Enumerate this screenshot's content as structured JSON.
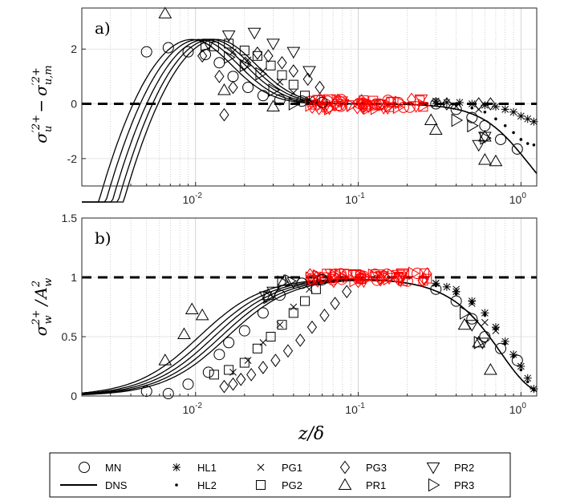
{
  "chart_data": [
    {
      "type": "line",
      "panel_label": "a)",
      "ylabel": "σu'2+ − σu,m'2+",
      "ylabel_parts": {
        "main": "σ",
        "sup1": "′2+",
        "sub1": "u",
        "minus": "−",
        "sup2": "′2+",
        "sub2": "u,m"
      },
      "xscale": "log",
      "xlim": [
        0.002,
        1.25
      ],
      "ylim": [
        -3,
        3.5
      ],
      "yticks": [
        -2,
        0,
        2
      ],
      "ytick_labels": [
        "-2",
        "0",
        "2"
      ],
      "xtick_labels": [
        "10-2",
        "10-1",
        "100"
      ],
      "reference_line": 0,
      "dns_peak_positions": [
        0.0095,
        0.0105,
        0.0115,
        0.0125,
        0.0135
      ],
      "dns_peak_value": 2.35,
      "series": [
        {
          "name": "MN",
          "marker": "circle",
          "points": [
            [
              0.005,
              1.9
            ],
            [
              0.0068,
              2.05
            ],
            [
              0.009,
              1.9
            ],
            [
              0.0115,
              1.8
            ],
            [
              0.014,
              1.5
            ],
            [
              0.017,
              1.0
            ],
            [
              0.021,
              0.6
            ],
            [
              0.026,
              0.3
            ],
            [
              0.033,
              0.15
            ],
            [
              0.045,
              0.1
            ],
            [
              0.06,
              0.05
            ],
            [
              0.3,
              0.0
            ],
            [
              0.4,
              -0.2
            ],
            [
              0.5,
              -0.5
            ],
            [
              0.6,
              -0.8
            ],
            [
              0.75,
              -1.3
            ],
            [
              0.95,
              -1.65
            ]
          ]
        },
        {
          "name": "HL1",
          "marker": "asterisk",
          "points": [
            [
              0.3,
              0.1
            ],
            [
              0.35,
              0.05
            ],
            [
              0.42,
              0.05
            ],
            [
              0.5,
              0.0
            ],
            [
              0.6,
              -0.05
            ],
            [
              0.7,
              -0.1
            ],
            [
              0.8,
              -0.2
            ],
            [
              0.9,
              -0.3
            ],
            [
              1.0,
              -0.45
            ],
            [
              1.1,
              -0.55
            ],
            [
              1.2,
              -0.65
            ]
          ]
        },
        {
          "name": "HL2",
          "marker": "dot",
          "points": [
            [
              0.3,
              0.0
            ],
            [
              0.4,
              -0.05
            ],
            [
              0.5,
              -0.15
            ],
            [
              0.6,
              -0.3
            ],
            [
              0.7,
              -0.55
            ],
            [
              0.8,
              -0.8
            ],
            [
              0.9,
              -1.05
            ],
            [
              1.0,
              -1.3
            ],
            [
              1.1,
              -1.45
            ],
            [
              1.2,
              -1.5
            ]
          ]
        },
        {
          "name": "PG1",
          "marker": "cross",
          "points": [
            [
              0.017,
              1.9
            ],
            [
              0.021,
              1.6
            ],
            [
              0.026,
              1.2
            ],
            [
              0.033,
              0.8
            ],
            [
              0.04,
              0.4
            ],
            [
              0.05,
              0.15
            ],
            [
              0.3,
              0.0
            ],
            [
              0.4,
              -0.1
            ],
            [
              0.55,
              -0.2
            ]
          ]
        },
        {
          "name": "PG2",
          "marker": "square",
          "points": [
            [
              0.013,
              2.1
            ],
            [
              0.016,
              2.2
            ],
            [
              0.02,
              1.95
            ],
            [
              0.024,
              1.75
            ],
            [
              0.029,
              1.4
            ],
            [
              0.034,
              1.05
            ],
            [
              0.04,
              0.7
            ],
            [
              0.047,
              0.3
            ]
          ]
        },
        {
          "name": "PG3",
          "marker": "diamond",
          "points": [
            [
              0.011,
              1.75
            ],
            [
              0.014,
              1.0
            ],
            [
              0.015,
              -0.4
            ],
            [
              0.017,
              0.6
            ],
            [
              0.02,
              1.45
            ],
            [
              0.024,
              1.85
            ],
            [
              0.028,
              1.75
            ],
            [
              0.034,
              1.5
            ],
            [
              0.04,
              1.2
            ],
            [
              0.049,
              0.9
            ],
            [
              0.058,
              0.6
            ],
            [
              0.35,
              0.0
            ],
            [
              0.55,
              0.0
            ],
            [
              0.65,
              0.0
            ]
          ]
        },
        {
          "name": "PR1",
          "marker": "triangle-up",
          "points": [
            [
              0.0065,
              3.3
            ],
            [
              0.015,
              0.5
            ],
            [
              0.03,
              -0.1
            ],
            [
              0.28,
              -0.6
            ],
            [
              0.3,
              -0.95
            ],
            [
              0.6,
              -2.05
            ],
            [
              0.7,
              -2.1
            ],
            [
              0.6,
              -1.2
            ]
          ]
        },
        {
          "name": "PR2",
          "marker": "triangle-down",
          "points": [
            [
              0.012,
              2.2
            ],
            [
              0.016,
              2.5
            ],
            [
              0.023,
              2.6
            ],
            [
              0.03,
              2.2
            ],
            [
              0.04,
              1.9
            ],
            [
              0.05,
              1.2
            ],
            [
              0.55,
              -1.5
            ],
            [
              0.6,
              -1.2
            ]
          ]
        },
        {
          "name": "PR3",
          "marker": "triangle-right",
          "points": [
            [
              0.0115,
              2.1
            ],
            [
              0.016,
              1.7
            ],
            [
              0.02,
              1.4
            ],
            [
              0.025,
              1.1
            ],
            [
              0.03,
              0.5
            ],
            [
              0.04,
              0.0
            ],
            [
              0.4,
              -0.6
            ],
            [
              0.5,
              -0.8
            ],
            [
              0.6,
              -1.25
            ]
          ]
        }
      ]
    },
    {
      "type": "line",
      "panel_label": "b)",
      "ylabel": "σw2+ / Aw2",
      "ylabel_parts": {
        "main": "σ",
        "sub1": "w",
        "sup1": "2+",
        "slash": "/",
        "A": "A",
        "sub2": "w",
        "sup2": "2"
      },
      "xscale": "log",
      "xlim": [
        0.002,
        1.25
      ],
      "ylim": [
        0,
        1.5
      ],
      "yticks": [
        0,
        0.5,
        1,
        1.5
      ],
      "ytick_labels": [
        "0",
        "0.5",
        "1",
        "1.5"
      ],
      "xtick_labels": [
        "10-2",
        "10-1",
        "100"
      ],
      "xlabel": "z/δ",
      "reference_line": 1,
      "dns_half_positions": [
        0.0105,
        0.0118,
        0.013,
        0.0143,
        0.0157
      ],
      "series": [
        {
          "name": "MN",
          "marker": "circle",
          "points": [
            [
              0.005,
              0.04
            ],
            [
              0.0068,
              0.02
            ],
            [
              0.009,
              0.1
            ],
            [
              0.012,
              0.2
            ],
            [
              0.014,
              0.35
            ],
            [
              0.016,
              0.45
            ],
            [
              0.02,
              0.55
            ],
            [
              0.026,
              0.7
            ],
            [
              0.033,
              0.85
            ],
            [
              0.045,
              0.95
            ],
            [
              0.06,
              0.98
            ],
            [
              0.3,
              0.9
            ],
            [
              0.4,
              0.8
            ],
            [
              0.5,
              0.65
            ],
            [
              0.6,
              0.5
            ],
            [
              0.75,
              0.4
            ],
            [
              0.95,
              0.3
            ]
          ]
        },
        {
          "name": "HL1",
          "marker": "asterisk",
          "points": [
            [
              0.3,
              0.95
            ],
            [
              0.35,
              0.92
            ],
            [
              0.4,
              0.88
            ],
            [
              0.5,
              0.8
            ],
            [
              0.6,
              0.7
            ],
            [
              0.7,
              0.58
            ],
            [
              0.8,
              0.46
            ],
            [
              0.9,
              0.35
            ],
            [
              1.0,
              0.25
            ],
            [
              1.1,
              0.15
            ],
            [
              1.2,
              0.06
            ]
          ]
        },
        {
          "name": "HL2",
          "marker": "dot",
          "points": [
            [
              0.3,
              0.93
            ],
            [
              0.4,
              0.86
            ],
            [
              0.5,
              0.78
            ],
            [
              0.6,
              0.68
            ],
            [
              0.7,
              0.56
            ],
            [
              0.8,
              0.44
            ],
            [
              0.9,
              0.33
            ],
            [
              1.0,
              0.22
            ],
            [
              1.1,
              0.12
            ],
            [
              1.2,
              0.05
            ]
          ]
        },
        {
          "name": "PG1",
          "marker": "cross",
          "points": [
            [
              0.017,
              0.2
            ],
            [
              0.021,
              0.3
            ],
            [
              0.026,
              0.45
            ],
            [
              0.033,
              0.6
            ],
            [
              0.04,
              0.75
            ],
            [
              0.05,
              0.9
            ],
            [
              0.3,
              0.95
            ],
            [
              0.4,
              0.9
            ],
            [
              0.5,
              0.78
            ],
            [
              0.6,
              0.62
            ],
            [
              0.7,
              0.55
            ]
          ]
        },
        {
          "name": "PG2",
          "marker": "square",
          "points": [
            [
              0.013,
              0.18
            ],
            [
              0.016,
              0.22
            ],
            [
              0.02,
              0.28
            ],
            [
              0.024,
              0.4
            ],
            [
              0.029,
              0.5
            ],
            [
              0.034,
              0.6
            ],
            [
              0.04,
              0.7
            ],
            [
              0.047,
              0.8
            ],
            [
              0.055,
              0.9
            ]
          ]
        },
        {
          "name": "PG3",
          "marker": "diamond",
          "points": [
            [
              0.015,
              0.08
            ],
            [
              0.017,
              0.1
            ],
            [
              0.019,
              0.14
            ],
            [
              0.022,
              0.18
            ],
            [
              0.026,
              0.24
            ],
            [
              0.031,
              0.3
            ],
            [
              0.037,
              0.38
            ],
            [
              0.044,
              0.47
            ],
            [
              0.052,
              0.58
            ],
            [
              0.062,
              0.68
            ],
            [
              0.072,
              0.78
            ],
            [
              0.085,
              0.88
            ]
          ]
        },
        {
          "name": "PR1",
          "marker": "triangle-up",
          "points": [
            [
              0.0065,
              0.3
            ],
            [
              0.0085,
              0.52
            ],
            [
              0.0095,
              0.73
            ],
            [
              0.011,
              0.68
            ],
            [
              0.028,
              0.85
            ],
            [
              0.035,
              0.97
            ],
            [
              0.45,
              0.6
            ],
            [
              0.55,
              0.45
            ],
            [
              0.65,
              0.22
            ]
          ]
        },
        {
          "name": "PR2",
          "marker": "triangle-down",
          "points": [
            [
              0.027,
              0.84
            ],
            [
              0.03,
              0.88
            ],
            [
              0.04,
              0.96
            ],
            [
              0.5,
              0.6
            ],
            [
              0.58,
              0.45
            ]
          ]
        },
        {
          "name": "PR3",
          "marker": "triangle-right",
          "points": [
            [
              0.028,
              0.83
            ],
            [
              0.034,
              0.96
            ],
            [
              0.038,
              0.97
            ],
            [
              0.45,
              0.7
            ],
            [
              0.55,
              0.45
            ]
          ]
        }
      ]
    }
  ],
  "legend": {
    "entries": [
      {
        "name": "MN",
        "marker": "circle"
      },
      {
        "name": "HL1",
        "marker": "asterisk"
      },
      {
        "name": "PG1",
        "marker": "cross"
      },
      {
        "name": "PG3",
        "marker": "diamond"
      },
      {
        "name": "PR2",
        "marker": "triangle-down"
      },
      {
        "name": "DNS",
        "marker": "line"
      },
      {
        "name": "HL2",
        "marker": "dot"
      },
      {
        "name": "PG2",
        "marker": "square"
      },
      {
        "name": "PR1",
        "marker": "triangle-up"
      },
      {
        "name": "PR3",
        "marker": "triangle-right"
      }
    ]
  },
  "colors": {
    "data": "#000000",
    "highlight": "#ff0000",
    "grid": "#bdbdbd",
    "axes": "#262626"
  }
}
